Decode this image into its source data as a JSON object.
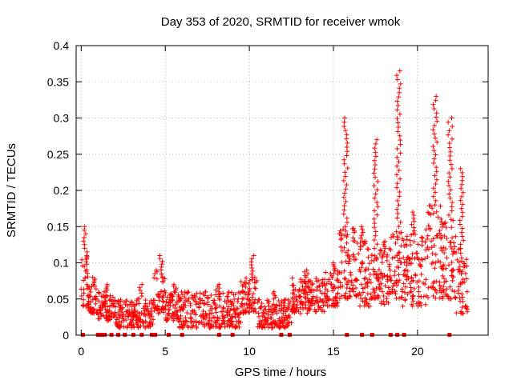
{
  "chart_data": {
    "type": "scatter",
    "title": "Day 353 of 2020, SRMTID for receiver wmok",
    "xlabel": "GPS time / hours",
    "ylabel": "SRMTID / TECUs",
    "xlim": [
      -0.3,
      24.2
    ],
    "ylim": [
      0,
      0.4
    ],
    "xticks": [
      0,
      5,
      10,
      15,
      20
    ],
    "xtick_labels": [
      "0",
      "5",
      "10",
      "15",
      "20"
    ],
    "yticks": [
      0,
      0.05,
      0.1,
      0.15,
      0.2,
      0.25,
      0.3,
      0.35,
      0.4
    ],
    "ytick_labels": [
      "0",
      "0.05",
      "0.1",
      "0.15",
      "0.2",
      "0.25",
      "0.3",
      "0.35",
      "0.4"
    ],
    "grid": true,
    "marker": "+",
    "series_color": "#ff0000",
    "baseline_markers_x": [
      0.1,
      1.0,
      1.2,
      1.4,
      1.8,
      2.2,
      2.6,
      3.1,
      3.6,
      4.2,
      4.4,
      5.2,
      6.0,
      8.2,
      9.0,
      11.9,
      12.4,
      15.8,
      16.7,
      17.3,
      18.4,
      18.8,
      19.2,
      21.9
    ],
    "segments": [
      {
        "x": [
          0.0,
          0.4
        ],
        "low": 0.04,
        "high": 0.11,
        "peak": 0.15
      },
      {
        "x": [
          0.4,
          1.0
        ],
        "low": 0.03,
        "high": 0.07,
        "peak": 0.08
      },
      {
        "x": [
          1.0,
          2.0
        ],
        "low": 0.02,
        "high": 0.06,
        "peak": 0.07
      },
      {
        "x": [
          2.0,
          4.3
        ],
        "low": 0.01,
        "high": 0.05,
        "peak": 0.07
      },
      {
        "x": [
          4.3,
          5.0
        ],
        "low": 0.03,
        "high": 0.09,
        "peak": 0.11
      },
      {
        "x": [
          5.0,
          5.8
        ],
        "low": 0.02,
        "high": 0.06,
        "peak": 0.07
      },
      {
        "x": [
          5.8,
          9.5
        ],
        "low": 0.01,
        "high": 0.06,
        "peak": 0.07
      },
      {
        "x": [
          9.5,
          10.5
        ],
        "low": 0.03,
        "high": 0.08,
        "peak": 0.11
      },
      {
        "x": [
          10.5,
          12.5
        ],
        "low": 0.01,
        "high": 0.05,
        "peak": 0.06
      },
      {
        "x": [
          12.5,
          14.5
        ],
        "low": 0.03,
        "high": 0.08,
        "peak": 0.09
      },
      {
        "x": [
          14.5,
          15.3
        ],
        "low": 0.04,
        "high": 0.09,
        "peak": 0.1
      },
      {
        "x": [
          15.3,
          16.3
        ],
        "low": 0.05,
        "high": 0.15,
        "peak": 0.3
      },
      {
        "x": [
          16.3,
          17.3
        ],
        "low": 0.04,
        "high": 0.13,
        "peak": 0.15
      },
      {
        "x": [
          17.3,
          17.8
        ],
        "low": 0.05,
        "high": 0.12,
        "peak": 0.27
      },
      {
        "x": [
          17.8,
          18.4
        ],
        "low": 0.04,
        "high": 0.12,
        "peak": 0.13
      },
      {
        "x": [
          18.4,
          19.1
        ],
        "low": 0.05,
        "high": 0.15,
        "peak": 0.365
      },
      {
        "x": [
          19.1,
          20.5
        ],
        "low": 0.04,
        "high": 0.14,
        "peak": 0.17
      },
      {
        "x": [
          20.5,
          21.5
        ],
        "low": 0.05,
        "high": 0.18,
        "peak": 0.33
      },
      {
        "x": [
          21.5,
          22.3
        ],
        "low": 0.05,
        "high": 0.16,
        "peak": 0.3
      },
      {
        "x": [
          22.3,
          23.0
        ],
        "low": 0.03,
        "high": 0.12,
        "peak": 0.23
      }
    ]
  }
}
